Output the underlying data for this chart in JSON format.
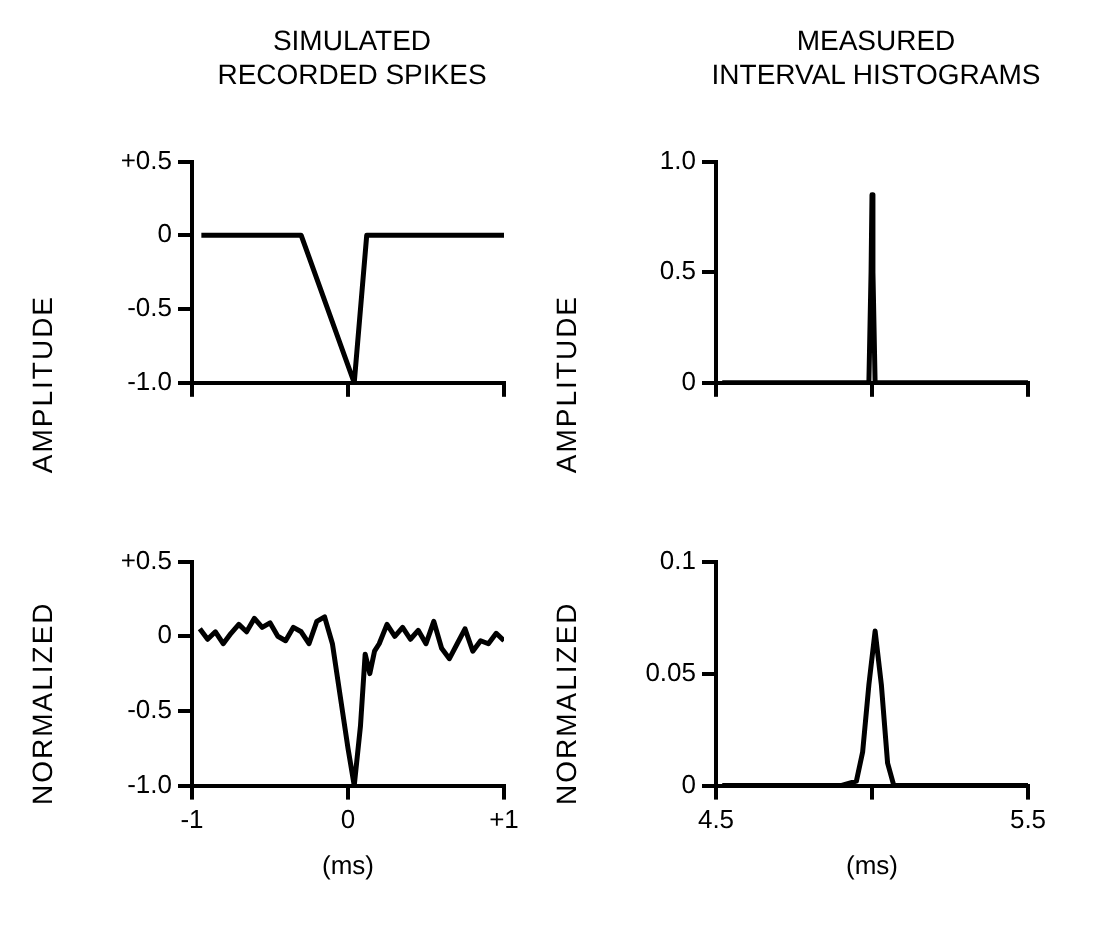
{
  "chart_data": [
    {
      "type": "line",
      "title": "SIMULATED\nRECORDED SPIKES",
      "ylabel": "NORMALIZED AMPLITUDE",
      "xlim": [
        -1,
        1
      ],
      "xticks": [
        -1,
        0,
        1
      ],
      "ylim": [
        -1.0,
        0.5
      ],
      "yticks": [
        {
          "value": 0.5,
          "label": "+0.5"
        },
        0,
        -0.5,
        {
          "value": -1.0,
          "label": "-1.0"
        }
      ],
      "tick_labels": "y",
      "grid": false,
      "marker": "none",
      "series": [
        {
          "color": "#000000",
          "x": [
            -0.94,
            -0.3,
            0.04,
            0.12,
            1.0
          ],
          "values": [
            0,
            0,
            -1.0,
            0,
            0
          ]
        }
      ]
    },
    {
      "type": "line",
      "title": "MEASURED\nINTERVAL HISTOGRAMS",
      "ylabel": "NORMALIZED AMPLITUDE",
      "xlim": [
        4.5,
        5.5
      ],
      "xticks": [
        4.5,
        5,
        5.5
      ],
      "ylim": [
        0,
        1.0
      ],
      "yticks": [
        0,
        0.5,
        {
          "value": 1.0,
          "label": "1.0"
        }
      ],
      "tick_labels": "y",
      "grid": false,
      "marker": "none",
      "series": [
        {
          "color": "#000000",
          "x": [
            4.52,
            4.99,
            4.997,
            5.0,
            5.003,
            5.01,
            5.5
          ],
          "values": [
            0,
            0,
            0.5,
            0.85,
            0.5,
            0,
            0
          ]
        }
      ]
    },
    {
      "type": "line",
      "xlabel": "(ms)",
      "xlim": [
        -1,
        1
      ],
      "xticks": [
        -1,
        0,
        {
          "value": 1,
          "label": "+1"
        }
      ],
      "ylim": [
        -1.0,
        0.5
      ],
      "yticks": [
        {
          "value": 0.5,
          "label": "+0.5"
        },
        0,
        -0.5,
        {
          "value": -1.0,
          "label": "-1.0"
        }
      ],
      "grid": false,
      "marker": "none",
      "series": [
        {
          "color": "#000000",
          "x": [
            -0.95,
            -0.9,
            -0.85,
            -0.8,
            -0.75,
            -0.7,
            -0.65,
            -0.6,
            -0.55,
            -0.5,
            -0.45,
            -0.4,
            -0.35,
            -0.3,
            -0.25,
            -0.2,
            -0.15,
            -0.1,
            -0.05,
            0,
            0.04,
            0.08,
            0.11,
            0.14,
            0.17,
            0.2,
            0.25,
            0.3,
            0.35,
            0.4,
            0.45,
            0.5,
            0.55,
            0.6,
            0.65,
            0.7,
            0.75,
            0.8,
            0.85,
            0.9,
            0.95,
            1.0
          ],
          "values": [
            0.05,
            -0.02,
            0.03,
            -0.05,
            0.02,
            0.08,
            0.03,
            0.12,
            0.06,
            0.09,
            0.0,
            -0.03,
            0.06,
            0.03,
            -0.05,
            0.1,
            0.13,
            -0.05,
            -0.4,
            -0.75,
            -1.0,
            -0.6,
            -0.12,
            -0.25,
            -0.1,
            -0.05,
            0.08,
            0.0,
            0.06,
            -0.02,
            0.04,
            -0.05,
            0.1,
            -0.08,
            -0.15,
            -0.05,
            0.05,
            -0.1,
            -0.03,
            -0.05,
            0.02,
            -0.03
          ]
        }
      ]
    },
    {
      "type": "line",
      "xlabel": "(ms)",
      "xlim": [
        4.5,
        5.5
      ],
      "xticks": [
        4.5,
        {
          "value": 5,
          "label": null
        },
        5.5
      ],
      "ylim": [
        0,
        0.1
      ],
      "yticks": [
        0,
        0.05,
        0.1
      ],
      "grid": false,
      "marker": "none",
      "series": [
        {
          "color": "#000000",
          "x": [
            4.52,
            4.9,
            4.95,
            4.97,
            4.99,
            5.01,
            5.03,
            5.05,
            5.07,
            5.5
          ],
          "values": [
            0,
            0,
            0.002,
            0.015,
            0.045,
            0.069,
            0.045,
            0.01,
            0,
            0
          ]
        }
      ]
    }
  ]
}
